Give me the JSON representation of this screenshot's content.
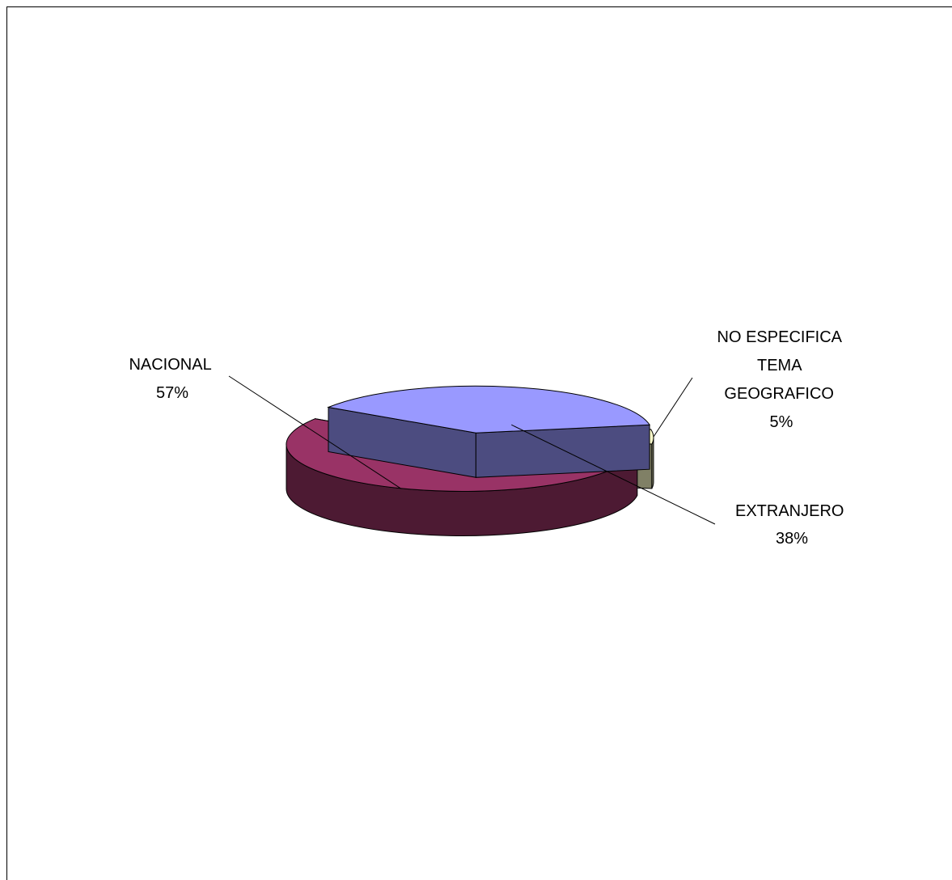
{
  "chart_data": {
    "type": "pie",
    "title": "",
    "three_d": true,
    "exploded": true,
    "labels": [
      "NACIONAL",
      "EXTRANJERO",
      "NO ESPECIFICA TEMA GEOGRAFICO"
    ],
    "label_lines": [
      [
        "NACIONAL"
      ],
      [
        "EXTRANJERO"
      ],
      [
        "NO ESPECIFICA",
        "TEMA",
        "GEOGRAFICO"
      ]
    ],
    "values": [
      57,
      38,
      5
    ],
    "percent_labels": [
      "57%",
      "38%",
      "5%"
    ],
    "colors": {
      "top": [
        "#993366",
        "#9999ff",
        "#ffffcc"
      ],
      "side": [
        "#4d1a33",
        "#4c4c80",
        "#808066"
      ]
    },
    "legend": "none"
  }
}
